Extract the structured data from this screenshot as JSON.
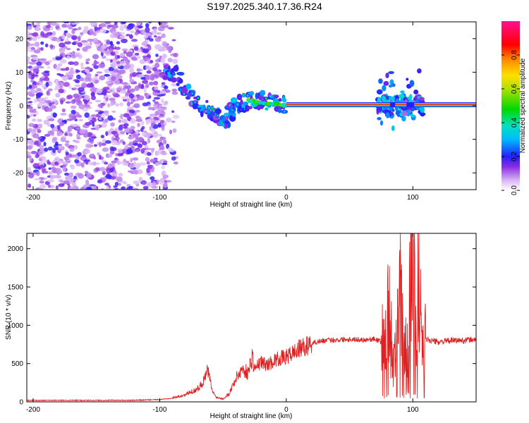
{
  "chart_data": [
    {
      "type": "heatmap",
      "title": "S197.2025.340.17.36.R24",
      "xlabel": "Height of straight line (km)",
      "ylabel": "Frequency (Hz)",
      "xlim": [
        -205,
        150
      ],
      "ylim": [
        -25,
        25
      ],
      "x_ticks": [
        -200,
        -100,
        0,
        100
      ],
      "y_ticks": [
        -20,
        -10,
        0,
        10,
        20
      ],
      "colorbar": {
        "label": "Normalized spectral amplitude",
        "range": [
          0.0,
          1.0
        ],
        "ticks": [
          0.0,
          0.2,
          0.4,
          0.6,
          0.8
        ]
      },
      "features": [
        {
          "region": "noise",
          "x_range": [
            -205,
            -95
          ],
          "freq_range": [
            -25,
            25
          ],
          "amplitude": 0.1
        },
        {
          "region": "descending-track",
          "points": [
            [
              -95,
              10
            ],
            [
              -88,
              10
            ],
            [
              -78,
              4
            ],
            [
              -72,
              1
            ],
            [
              -62,
              -1
            ],
            [
              -55,
              -3
            ],
            [
              -48,
              -5
            ],
            [
              -42,
              -1
            ],
            [
              -35,
              1
            ],
            [
              -25,
              2
            ],
            [
              -18,
              1.5
            ],
            [
              -10,
              0.5
            ],
            [
              0,
              0
            ]
          ],
          "amplitude": 0.45
        },
        {
          "region": "steady-line",
          "x_range": [
            0,
            150
          ],
          "freq": 0.3,
          "amplitude": 0.95
        },
        {
          "region": "burst",
          "x_range": [
            72,
            108
          ],
          "freq_range": [
            -6,
            9
          ],
          "amplitude": 0.4
        }
      ]
    },
    {
      "type": "line",
      "title": "",
      "xlabel": "Height of straight line (km)",
      "ylabel": "SNR (10 * v/v)",
      "xlim": [
        -205,
        150
      ],
      "ylim": [
        0,
        2200
      ],
      "x_ticks": [
        -200,
        -100,
        0,
        100
      ],
      "y_ticks": [
        0,
        500,
        1000,
        1500,
        2000
      ],
      "series": [
        {
          "name": "SNR",
          "color": "#e02020",
          "x": [
            -205,
            -180,
            -150,
            -120,
            -100,
            -90,
            -80,
            -70,
            -65,
            -62,
            -60,
            -58,
            -55,
            -50,
            -45,
            -40,
            -35,
            -30,
            -27,
            -25,
            -20,
            -15,
            -10,
            -5,
            0,
            5,
            10,
            15,
            20,
            25,
            30,
            40,
            50,
            60,
            70,
            75,
            80,
            85,
            90,
            95,
            100,
            103,
            105,
            108,
            110,
            120,
            130,
            140,
            150
          ],
          "y": [
            20,
            20,
            20,
            20,
            30,
            50,
            90,
            170,
            280,
            420,
            260,
            120,
            60,
            40,
            110,
            300,
            430,
            380,
            600,
            430,
            520,
            480,
            540,
            570,
            580,
            640,
            690,
            720,
            760,
            790,
            800,
            810,
            820,
            810,
            820,
            780,
            950,
            450,
            1250,
            400,
            2150,
            350,
            1800,
            500,
            820,
            780,
            800,
            800,
            820
          ]
        }
      ]
    }
  ]
}
